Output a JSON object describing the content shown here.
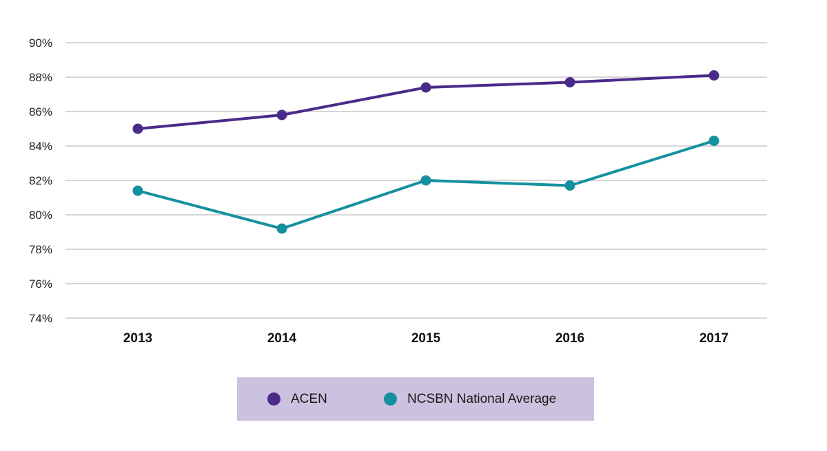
{
  "chart_data": {
    "type": "line",
    "categories": [
      "2013",
      "2014",
      "2015",
      "2016",
      "2017"
    ],
    "ylim": [
      74,
      90
    ],
    "yticks": [
      74,
      76,
      78,
      80,
      82,
      84,
      86,
      88,
      90
    ],
    "ytick_labels": [
      "74%",
      "76%",
      "78%",
      "80%",
      "82%",
      "84%",
      "86%",
      "88%",
      "90%"
    ],
    "grid": true,
    "legend_position": "bottom",
    "series": [
      {
        "name": "ACEN",
        "color": "#4b2a8a",
        "values": [
          85.0,
          85.8,
          87.4,
          87.7,
          88.1
        ]
      },
      {
        "name": "NCSBN National Average",
        "color": "#15909f",
        "values": [
          81.4,
          79.2,
          82.0,
          81.7,
          84.3
        ]
      }
    ]
  },
  "legend": {
    "items": [
      {
        "label": "ACEN",
        "color": "#4b2a8a"
      },
      {
        "label": "NCSBN National Average",
        "color": "#15909f"
      }
    ]
  }
}
